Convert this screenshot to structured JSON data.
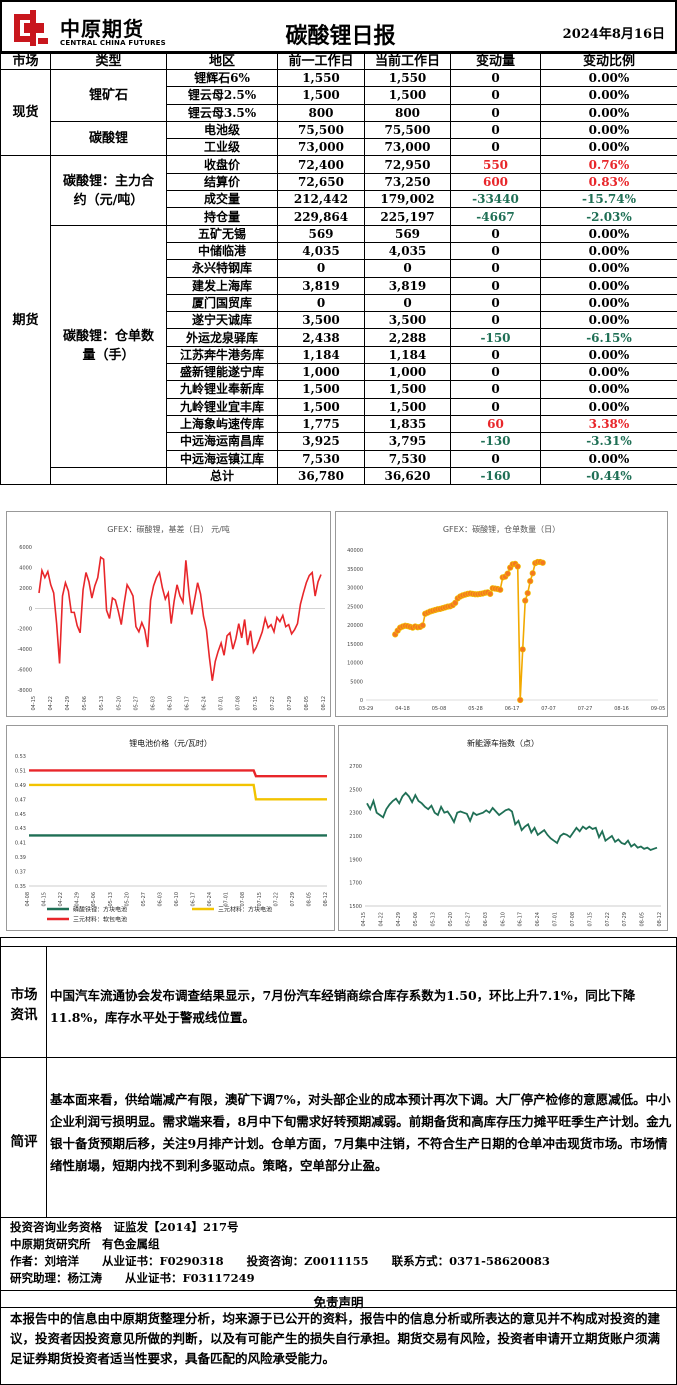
{
  "header": {
    "logo_cn": "中原期货",
    "logo_en": "CENTRAL CHINA FUTURES",
    "title": "碳酸锂日报",
    "date": "2024年8月16日"
  },
  "table": {
    "headers": [
      "市场",
      "类型",
      "地区",
      "前一工作日",
      "当前工作日",
      "变动量",
      "变动比例"
    ],
    "groups": {
      "spot": "现货",
      "futures": "期货",
      "ore": "锂矿石",
      "lc": "碳酸锂",
      "contract": "碳酸锂：主力合约（元/吨）",
      "warehouse": "碳酸锂：仓单数量（手）"
    },
    "rows": [
      {
        "name": "锂辉石6%",
        "prev": "1,550",
        "cur": "1,550",
        "chg": "0",
        "pct": "0.00%",
        "c": ""
      },
      {
        "name": "锂云母2.5%",
        "prev": "1,500",
        "cur": "1,500",
        "chg": "0",
        "pct": "0.00%",
        "c": ""
      },
      {
        "name": "锂云母3.5%",
        "prev": "800",
        "cur": "800",
        "chg": "0",
        "pct": "0.00%",
        "c": ""
      },
      {
        "name": "电池级",
        "prev": "75,500",
        "cur": "75,500",
        "chg": "0",
        "pct": "0.00%",
        "c": ""
      },
      {
        "name": "工业级",
        "prev": "73,000",
        "cur": "73,000",
        "chg": "0",
        "pct": "0.00%",
        "c": ""
      },
      {
        "name": "收盘价",
        "prev": "72,400",
        "cur": "72,950",
        "chg": "550",
        "pct": "0.76%",
        "c": "red"
      },
      {
        "name": "结算价",
        "prev": "72,650",
        "cur": "73,250",
        "chg": "600",
        "pct": "0.83%",
        "c": "red"
      },
      {
        "name": "成交量",
        "prev": "212,442",
        "cur": "179,002",
        "chg": "-33440",
        "pct": "-15.74%",
        "c": "grn"
      },
      {
        "name": "持仓量",
        "prev": "229,864",
        "cur": "225,197",
        "chg": "-4667",
        "pct": "-2.03%",
        "c": "grn"
      },
      {
        "name": "五矿无锡",
        "prev": "569",
        "cur": "569",
        "chg": "0",
        "pct": "0.00%",
        "c": ""
      },
      {
        "name": "中储临港",
        "prev": "4,035",
        "cur": "4,035",
        "chg": "0",
        "pct": "0.00%",
        "c": ""
      },
      {
        "name": "永兴特钢库",
        "prev": "0",
        "cur": "0",
        "chg": "0",
        "pct": "0.00%",
        "c": ""
      },
      {
        "name": "建发上海库",
        "prev": "3,819",
        "cur": "3,819",
        "chg": "0",
        "pct": "0.00%",
        "c": ""
      },
      {
        "name": "厦门国贸库",
        "prev": "0",
        "cur": "0",
        "chg": "0",
        "pct": "0.00%",
        "c": ""
      },
      {
        "name": "遂宁天诚库",
        "prev": "3,500",
        "cur": "3,500",
        "chg": "0",
        "pct": "0.00%",
        "c": ""
      },
      {
        "name": "外运龙泉驿库",
        "prev": "2,438",
        "cur": "2,288",
        "chg": "-150",
        "pct": "-6.15%",
        "c": "grn"
      },
      {
        "name": "江苏奔牛港务库",
        "prev": "1,184",
        "cur": "1,184",
        "chg": "0",
        "pct": "0.00%",
        "c": ""
      },
      {
        "name": "盛新锂能遂宁库",
        "prev": "1,000",
        "cur": "1,000",
        "chg": "0",
        "pct": "0.00%",
        "c": ""
      },
      {
        "name": "九岭锂业奉新库",
        "prev": "1,500",
        "cur": "1,500",
        "chg": "0",
        "pct": "0.00%",
        "c": ""
      },
      {
        "name": "九岭锂业宜丰库",
        "prev": "1,500",
        "cur": "1,500",
        "chg": "0",
        "pct": "0.00%",
        "c": ""
      },
      {
        "name": "上海象屿速传库",
        "prev": "1,775",
        "cur": "1,835",
        "chg": "60",
        "pct": "3.38%",
        "c": "red"
      },
      {
        "name": "中远海运南昌库",
        "prev": "3,925",
        "cur": "3,795",
        "chg": "-130",
        "pct": "-3.31%",
        "c": "grn"
      },
      {
        "name": "中远海运镇江库",
        "prev": "7,530",
        "cur": "7,530",
        "chg": "0",
        "pct": "0.00%",
        "c": ""
      },
      {
        "name": "总计",
        "prev": "36,780",
        "cur": "36,620",
        "chg": "-160",
        "pct": "-0.44%",
        "c": "grn"
      }
    ]
  },
  "chart_data": [
    {
      "type": "line",
      "title": "GFEX：碳酸锂，基差（日） 元/吨",
      "color": "#e8262a",
      "ylim": [
        -8000,
        6000
      ],
      "yticks": [
        -8000,
        -6000,
        -4000,
        -2000,
        0,
        2000,
        4000,
        6000
      ],
      "xticks": [
        "04-15",
        "04-22",
        "04-29",
        "05-06",
        "05-13",
        "05-20",
        "05-27",
        "06-03",
        "06-10",
        "06-17",
        "06-24",
        "07-01",
        "07-08",
        "07-15",
        "07-22",
        "07-29",
        "08-05",
        "08-12"
      ],
      "x_start": "04-15",
      "x_end": "08-16",
      "values": [
        1500,
        3700,
        3000,
        3600,
        2300,
        1500,
        -1500,
        -5400,
        1200,
        2500,
        1700,
        -400,
        -400,
        -1700,
        -2400,
        1800,
        3500,
        2600,
        1000,
        2200,
        3000,
        5000,
        4800,
        -200,
        -1000,
        1000,
        800,
        -300,
        -1600,
        500,
        2300,
        1800,
        1200,
        -1800,
        -2300,
        -1400,
        -2100,
        -3800,
        800,
        2200,
        3000,
        3500,
        2000,
        900,
        1500,
        -1500,
        700,
        2300,
        1200,
        600,
        4700,
        1700,
        -600,
        900,
        2500,
        1400,
        -800,
        -2100,
        -4800,
        -7100,
        -5200,
        -4200,
        -3400,
        -4600,
        -2700,
        -2400,
        -4000,
        -3000,
        -1500,
        -2900,
        -1100,
        -3600,
        -2200,
        -4300,
        -3800,
        -3100,
        -2300,
        -1000,
        -1900,
        -1600,
        -2300,
        -900,
        -1300,
        -700,
        -1800,
        -1600,
        -2500,
        -2100,
        -1500,
        400,
        1500,
        2500,
        3200,
        3500,
        1200,
        2600,
        3300
      ]
    },
    {
      "type": "line",
      "title": "GFEX：碳酸锂，仓单数量（日）",
      "color": "#f2a900",
      "marker": "#f4791f",
      "ylim": [
        0,
        40000
      ],
      "yticks": [
        0,
        5000,
        10000,
        15000,
        20000,
        25000,
        30000,
        35000,
        40000
      ],
      "xticks": [
        "03-29",
        "04-18",
        "05-08",
        "05-28",
        "06-17",
        "07-07",
        "07-27",
        "08-16",
        "09-05"
      ],
      "x_start": "03-29",
      "x_end": "09-05",
      "start_day": 16,
      "step_day": 1.37,
      "values": [
        17500,
        18500,
        19300,
        19600,
        19800,
        19700,
        19500,
        19300,
        19600,
        19400,
        19500,
        19900,
        23000,
        23300,
        23600,
        23800,
        24000,
        24200,
        24300,
        24500,
        24700,
        24900,
        25000,
        25300,
        25900,
        27100,
        27600,
        27900,
        28100,
        28300,
        28400,
        28300,
        28200,
        28200,
        28300,
        28400,
        28600,
        28700,
        28300,
        29800,
        29700,
        29600,
        29400,
        32700,
        32900,
        33700,
        35300,
        36200,
        36300,
        35600,
        0,
        13500,
        26500,
        28500,
        31700,
        33800,
        36500,
        36800,
        36800,
        36600
      ]
    },
    {
      "type": "line",
      "title": "锂电池价格（元/瓦时）",
      "ylim": [
        0.35,
        0.53
      ],
      "yticks": [
        0.35,
        0.37,
        0.39,
        0.41,
        0.43,
        0.45,
        0.47,
        0.49,
        0.51,
        0.53
      ],
      "xticks": [
        "04-08",
        "04-15",
        "04-22",
        "04-29",
        "05-06",
        "05-13",
        "05-20",
        "05-27",
        "06-03",
        "06-10",
        "06-17",
        "06-24",
        "07-01",
        "07-08",
        "07-15",
        "07-22",
        "07-29",
        "08-05",
        "08-12"
      ],
      "x_start": "04-08",
      "x_end": "08-16",
      "series": [
        {
          "name": "磷酸铁锂：方块电池",
          "color": "#1f6f55",
          "points": [
            [
              0,
              0.42
            ],
            [
              130,
              0.42
            ]
          ]
        },
        {
          "name": "三元材料：方块电池",
          "color": "#f2c300",
          "points": [
            [
              0,
              0.49
            ],
            [
              98,
              0.49
            ],
            [
              99,
              0.47
            ],
            [
              130,
              0.47
            ]
          ]
        },
        {
          "name": "三元材料：软包电池",
          "color": "#e8262a",
          "points": [
            [
              0,
              0.51
            ],
            [
              98,
              0.51
            ],
            [
              99,
              0.502
            ],
            [
              130,
              0.502
            ]
          ]
        }
      ]
    },
    {
      "type": "line",
      "title": "新能源车指数（点）",
      "color": "#1f6f55",
      "ylim": [
        1500,
        2700
      ],
      "yticks": [
        1500,
        1700,
        1900,
        2100,
        2300,
        2500,
        2700
      ],
      "xticks": [
        "04-15",
        "04-22",
        "04-29",
        "05-06",
        "05-13",
        "05-20",
        "05-27",
        "06-03",
        "06-10",
        "06-17",
        "06-24",
        "07-01",
        "07-08",
        "07-15",
        "07-22",
        "07-29",
        "08-05",
        "08-12"
      ],
      "x_start": "04-15",
      "x_end": "08-16",
      "values": [
        2380,
        2330,
        2400,
        2300,
        2280,
        2260,
        2330,
        2370,
        2400,
        2420,
        2380,
        2440,
        2470,
        2440,
        2390,
        2450,
        2400,
        2380,
        2350,
        2330,
        2360,
        2300,
        2280,
        2350,
        2300,
        2310,
        2270,
        2220,
        2300,
        2310,
        2300,
        2290,
        2230,
        2300,
        2280,
        2290,
        2300,
        2320,
        2300,
        2340,
        2310,
        2280,
        2300,
        2320,
        2330,
        2310,
        2200,
        2230,
        2150,
        2180,
        2200,
        2130,
        2170,
        2110,
        2130,
        2150,
        2110,
        2080,
        2060,
        2040,
        2100,
        2120,
        2110,
        2090,
        2130,
        2170,
        2140,
        2180,
        2160,
        2180,
        2160,
        2170,
        2090,
        2140,
        2060,
        2080,
        2100,
        2050,
        2070,
        2040,
        2030,
        2060,
        2010,
        2030,
        2000,
        2010,
        1990,
        2000,
        1980,
        1990,
        2000
      ]
    }
  ],
  "info": {
    "market_label": "市场资讯",
    "market_text": "中国汽车流通协会发布调查结果显示，7月份汽车经销商综合库存系数为1.50，环比上升7.1%，同比下降11.8%，库存水平处于警戒线位置。",
    "comment_label": "简评",
    "comment_text": "基本面来看，供给端减产有限，澳矿下调7%，对头部企业的成本预计再次下调。大厂停产检修的意愿减低。中小企业利润亏损明显。需求端来看，8月中下旬需求好转预期减弱。前期备货和高库存压力摊平旺季生产计划。金九银十备货预期后移，关注9月排产计划。仓单方面，7月集中注销，不符合生产日期的仓单冲击现货市场。市场情绪性崩塌，短期内找不到利多驱动点。策略，空单部分止盈。"
  },
  "footer": {
    "line1": "投资咨询业务资格　证监发【2014】217号",
    "line2": "中原期货研究所　有色金属组",
    "author": "作者：刘培洋　　从业证书：F0290318　　投资咨询：Z0011155　　联系方式：0371-58620083",
    "assistant": "研究助理：杨江涛　　从业证书：F03117249",
    "disclaimer_title": "免责声明",
    "disclaimer": "本报告中的信息由中原期货整理分析，均来源于已公开的资料，报告中的信息分析或所表达的意见并不构成对投资的建议，投资者因投资意见所做的判断，以及有可能产生的损失自行承担。期货交易有风险，投资者申请开立期货账户须满足证券期货投资者适当性要求，具备匹配的风险承受能力。"
  }
}
